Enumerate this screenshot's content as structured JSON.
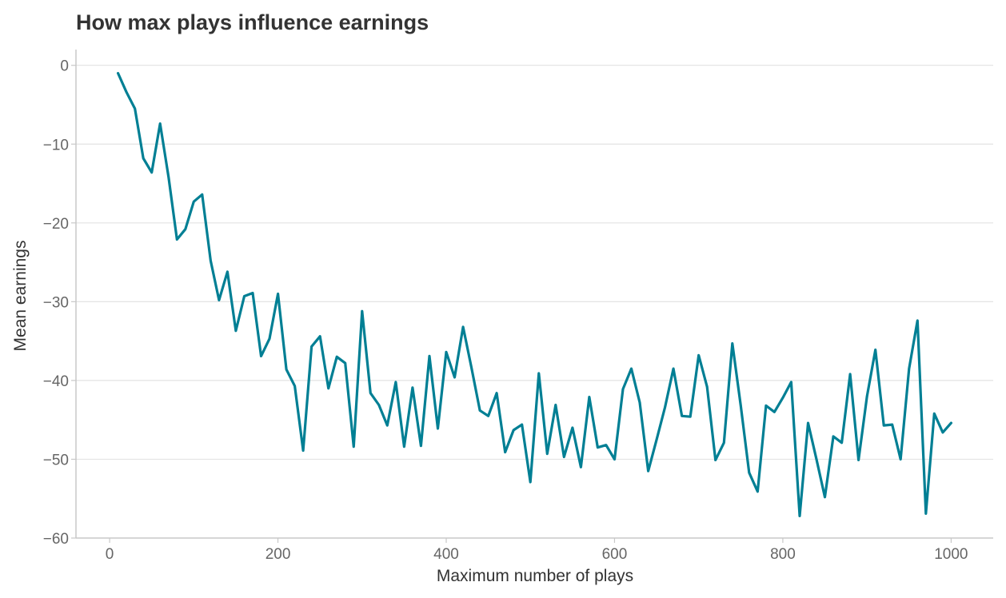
{
  "chart_data": {
    "type": "line",
    "title": "How max plays influence earnings",
    "xlabel": "Maximum number of plays",
    "ylabel": "Mean earnings",
    "xlim": [
      -40,
      1050
    ],
    "ylim": [
      -60,
      2
    ],
    "xticks": [
      0,
      200,
      400,
      600,
      800,
      1000
    ],
    "yticks": [
      0,
      -10,
      -20,
      -30,
      -40,
      -50,
      -60
    ],
    "xtick_labels": [
      "0",
      "200",
      "400",
      "600",
      "800",
      "1000"
    ],
    "ytick_labels": [
      "0",
      "−10",
      "−20",
      "−30",
      "−40",
      "−50",
      "−60"
    ],
    "grid": "horizontal",
    "line_color": "#007f94",
    "series": [
      {
        "x": [
          10,
          20,
          30,
          40,
          50,
          60,
          70,
          80,
          90,
          100,
          110,
          120,
          130,
          140,
          150,
          160,
          170,
          180,
          190,
          200,
          210,
          220,
          230,
          240,
          250,
          260,
          270,
          280,
          290,
          300,
          310,
          320,
          330,
          340,
          350,
          360,
          370,
          380,
          390,
          400,
          410,
          420,
          430,
          440,
          450,
          460,
          470,
          480,
          490,
          500,
          510,
          520,
          530,
          540,
          550,
          560,
          570,
          580,
          590,
          600,
          610,
          620,
          630,
          640,
          650,
          660,
          670,
          680,
          690,
          700,
          710,
          720,
          730,
          740,
          750,
          760,
          770,
          780,
          790,
          800,
          810,
          820,
          830,
          840,
          850,
          860,
          870,
          880,
          890,
          900,
          910,
          920,
          930,
          940,
          950,
          960,
          970,
          980,
          990,
          1000
        ],
        "y": [
          -1.0,
          -3.4,
          -5.5,
          -11.8,
          -13.6,
          -7.4,
          -14.2,
          -22.1,
          -20.8,
          -17.3,
          -16.4,
          -24.8,
          -29.8,
          -26.2,
          -33.7,
          -29.3,
          -28.9,
          -36.9,
          -34.7,
          -29.0,
          -38.6,
          -40.7,
          -48.9,
          -35.7,
          -34.4,
          -41.0,
          -37.0,
          -37.8,
          -48.4,
          -31.2,
          -41.6,
          -43.1,
          -45.7,
          -40.2,
          -48.4,
          -40.9,
          -48.3,
          -36.9,
          -46.1,
          -36.4,
          -39.6,
          -33.2,
          -38.4,
          -43.8,
          -44.5,
          -41.6,
          -49.1,
          -46.3,
          -45.6,
          -52.9,
          -39.1,
          -49.3,
          -43.1,
          -49.7,
          -46.0,
          -51.0,
          -42.1,
          -48.5,
          -48.2,
          -50.0,
          -41.1,
          -38.5,
          -42.8,
          -51.5,
          -47.5,
          -43.4,
          -38.5,
          -44.5,
          -44.6,
          -36.8,
          -40.8,
          -50.1,
          -47.9,
          -35.3,
          -43.2,
          -51.7,
          -54.1,
          -43.2,
          -44.0,
          -42.2,
          -40.2,
          -57.2,
          -45.4,
          -50.0,
          -54.8,
          -47.1,
          -47.9,
          -39.2,
          -50.1,
          -42.0,
          -36.1,
          -45.7,
          -45.6,
          -50.0,
          -38.5,
          -32.4,
          -56.9,
          -44.2,
          -46.6,
          -45.4
        ]
      }
    ]
  }
}
